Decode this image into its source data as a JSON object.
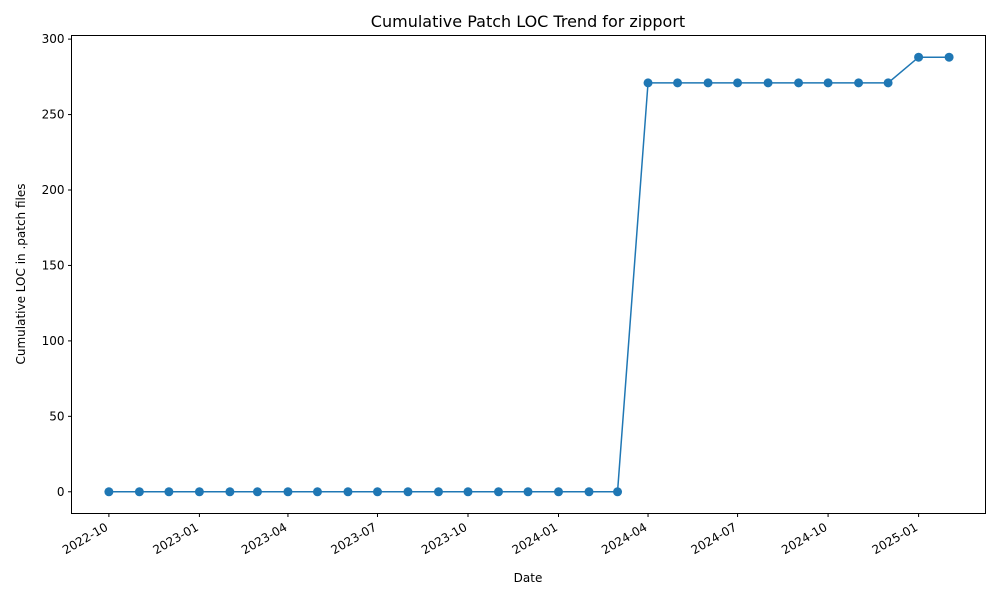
{
  "chart_data": {
    "type": "line",
    "title": "Cumulative Patch LOC Trend for zipport",
    "xlabel": "Date",
    "ylabel": "Cumulative LOC in .patch files",
    "series": [
      {
        "color": "#1f77b4",
        "marker": "circle",
        "x": [
          "2022-10-01",
          "2022-11-01",
          "2022-12-01",
          "2023-01-01",
          "2023-02-01",
          "2023-03-01",
          "2023-04-01",
          "2023-05-01",
          "2023-06-01",
          "2023-07-01",
          "2023-08-01",
          "2023-09-01",
          "2023-10-01",
          "2023-11-01",
          "2023-12-01",
          "2024-01-01",
          "2024-02-01",
          "2024-03-01",
          "2024-04-01",
          "2024-05-01",
          "2024-06-01",
          "2024-07-01",
          "2024-08-01",
          "2024-09-01",
          "2024-10-01",
          "2024-11-01",
          "2024-12-01",
          "2025-01-01",
          "2025-02-01"
        ],
        "values": [
          0,
          0,
          0,
          0,
          0,
          0,
          0,
          0,
          0,
          0,
          0,
          0,
          0,
          0,
          0,
          0,
          0,
          0,
          271,
          271,
          271,
          271,
          271,
          271,
          271,
          271,
          271,
          288,
          288
        ]
      }
    ],
    "xticks": [
      "2022-10",
      "2023-01",
      "2023-04",
      "2023-07",
      "2023-10",
      "2024-01",
      "2024-04",
      "2024-07",
      "2024-10",
      "2025-01"
    ],
    "yticks": [
      0,
      50,
      100,
      150,
      200,
      250,
      300
    ],
    "xlim": [
      "2022-08-24",
      "2025-03-10"
    ],
    "ylim": [
      -14.4,
      302.4
    ],
    "grid": false,
    "legend": "none"
  }
}
